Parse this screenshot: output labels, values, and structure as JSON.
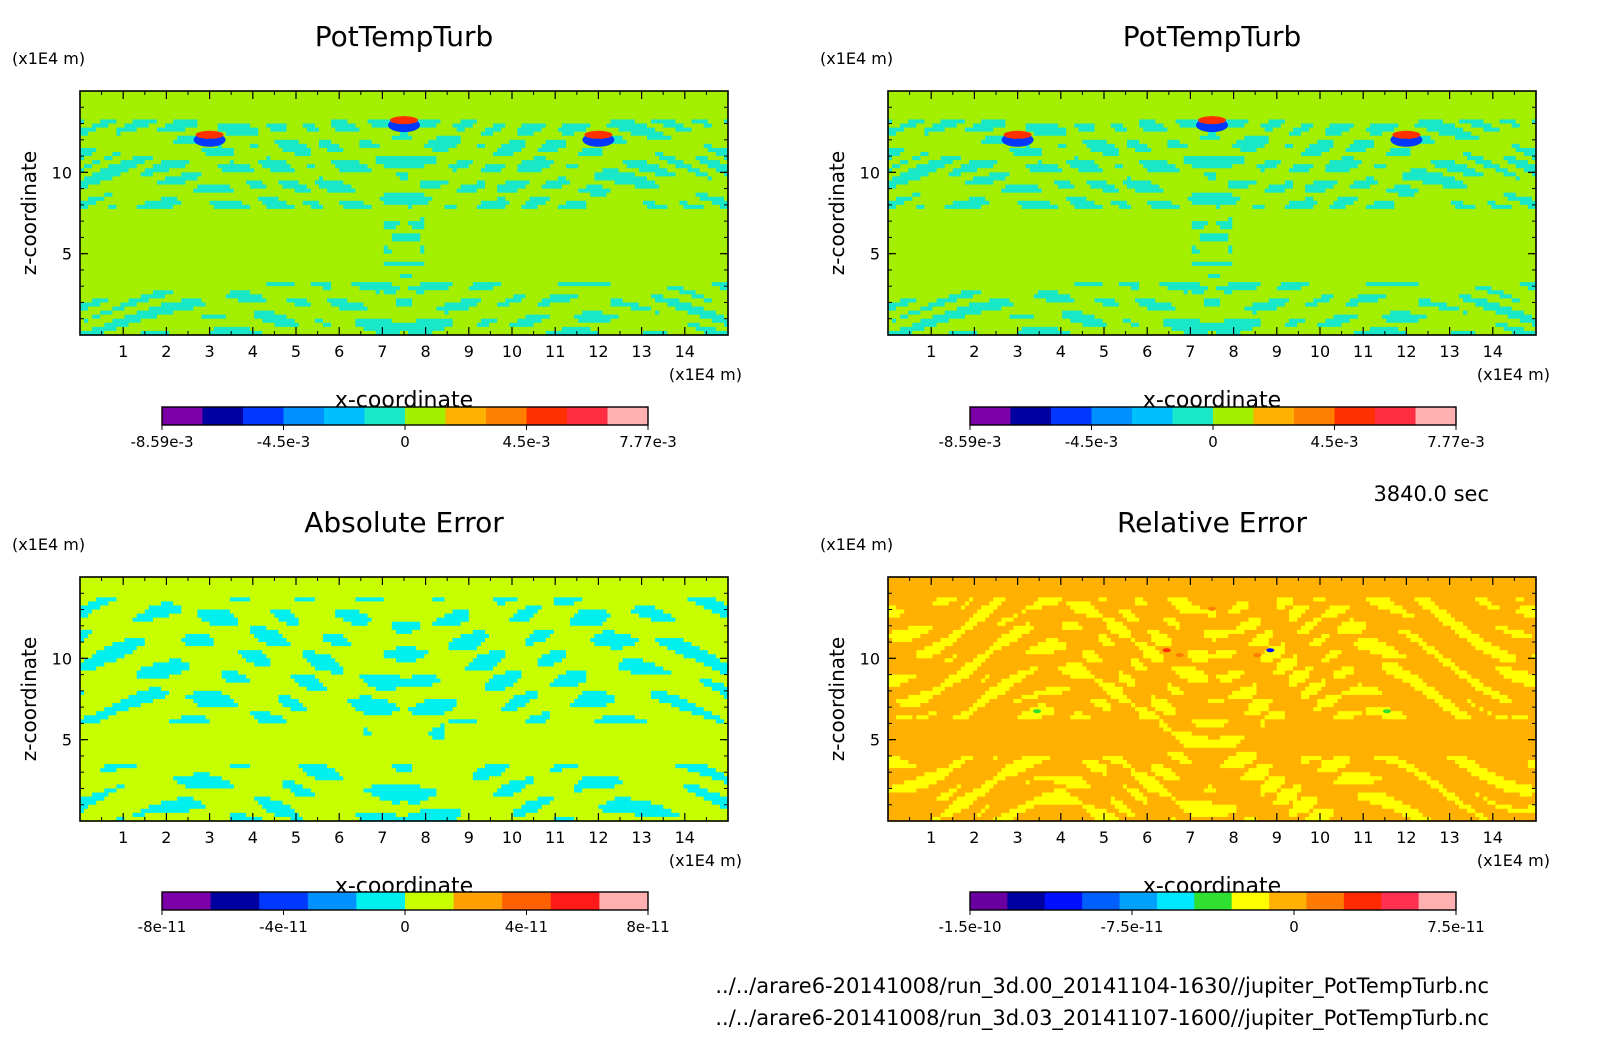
{
  "time_label": "3840.0 sec",
  "file_paths": [
    "../../arare6-20141008/run_3d.00_20141104-1630//jupiter_PotTempTurb.nc",
    "../../arare6-20141008/run_3d.03_20141107-1600//jupiter_PotTempTurb.nc"
  ],
  "chart_data": [
    {
      "type": "heatmap",
      "title": "PotTempTurb",
      "xlabel": "x-coordinate",
      "ylabel": "z-coordinate",
      "x_unit": "(x1E4 m)",
      "z_unit": "(x1E4 m)",
      "xlim": [
        0,
        15
      ],
      "ylim": [
        0,
        15
      ],
      "x_ticks": [
        "1",
        "2",
        "3",
        "4",
        "5",
        "6",
        "7",
        "8",
        "9",
        "10",
        "11",
        "12",
        "13",
        "14"
      ],
      "y_ticks": [
        "5",
        "10"
      ],
      "colorbar": {
        "colors": [
          "#7b00a8",
          "#0000a0",
          "#0038ff",
          "#0090ff",
          "#00bfff",
          "#19e8c8",
          "#a4ee00",
          "#ffb000",
          "#ff7f00",
          "#ff3000",
          "#ff2d40",
          "#ffb0b0"
        ],
        "tick_labels": [
          "-8.59e-3",
          "-4.5e-3",
          "0",
          "4.5e-3",
          "7.77e-3"
        ]
      },
      "field": "pot"
    },
    {
      "type": "heatmap",
      "title": "PotTempTurb",
      "xlabel": "x-coordinate",
      "ylabel": "z-coordinate",
      "x_unit": "(x1E4 m)",
      "z_unit": "(x1E4 m)",
      "xlim": [
        0,
        15
      ],
      "ylim": [
        0,
        15
      ],
      "x_ticks": [
        "1",
        "2",
        "3",
        "4",
        "5",
        "6",
        "7",
        "8",
        "9",
        "10",
        "11",
        "12",
        "13",
        "14"
      ],
      "y_ticks": [
        "5",
        "10"
      ],
      "colorbar": {
        "colors": [
          "#7b00a8",
          "#0000a0",
          "#0038ff",
          "#0090ff",
          "#00bfff",
          "#19e8c8",
          "#a4ee00",
          "#ffb000",
          "#ff7f00",
          "#ff3000",
          "#ff2d40",
          "#ffb0b0"
        ],
        "tick_labels": [
          "-8.59e-3",
          "-4.5e-3",
          "0",
          "4.5e-3",
          "7.77e-3"
        ]
      },
      "field": "pot"
    },
    {
      "type": "heatmap",
      "title": "Absolute Error",
      "xlabel": "x-coordinate",
      "ylabel": "z-coordinate",
      "x_unit": "(x1E4 m)",
      "z_unit": "(x1E4 m)",
      "xlim": [
        0,
        15
      ],
      "ylim": [
        0,
        15
      ],
      "x_ticks": [
        "1",
        "2",
        "3",
        "4",
        "5",
        "6",
        "7",
        "8",
        "9",
        "10",
        "11",
        "12",
        "13",
        "14"
      ],
      "y_ticks": [
        "5",
        "10"
      ],
      "colorbar": {
        "colors": [
          "#7b00a8",
          "#0000a0",
          "#0038ff",
          "#0090ff",
          "#00f0f0",
          "#c8ff00",
          "#ffa000",
          "#ff6000",
          "#ff1a1a",
          "#ffb0b0"
        ],
        "tick_labels": [
          "-8e-11",
          "-4e-11",
          "0",
          "4e-11",
          "8e-11"
        ]
      },
      "field": "abs"
    },
    {
      "type": "heatmap",
      "title": "Relative Error",
      "xlabel": "x-coordinate",
      "ylabel": "z-coordinate",
      "x_unit": "(x1E4 m)",
      "z_unit": "(x1E4 m)",
      "xlim": [
        0,
        15
      ],
      "ylim": [
        0,
        15
      ],
      "x_ticks": [
        "1",
        "2",
        "3",
        "4",
        "5",
        "6",
        "7",
        "8",
        "9",
        "10",
        "11",
        "12",
        "13",
        "14"
      ],
      "y_ticks": [
        "5",
        "10"
      ],
      "colorbar": {
        "colors": [
          "#6a00a0",
          "#0000a0",
          "#0010ff",
          "#0060ff",
          "#00a0ff",
          "#00e8ff",
          "#30e030",
          "#ffff00",
          "#ffb000",
          "#ff7a00",
          "#ff2a00",
          "#ff3050",
          "#ffb0b0"
        ],
        "tick_labels": [
          "-1.5e-10",
          "-7.5e-11",
          "0",
          "7.5e-11"
        ]
      },
      "field": "rel"
    }
  ]
}
